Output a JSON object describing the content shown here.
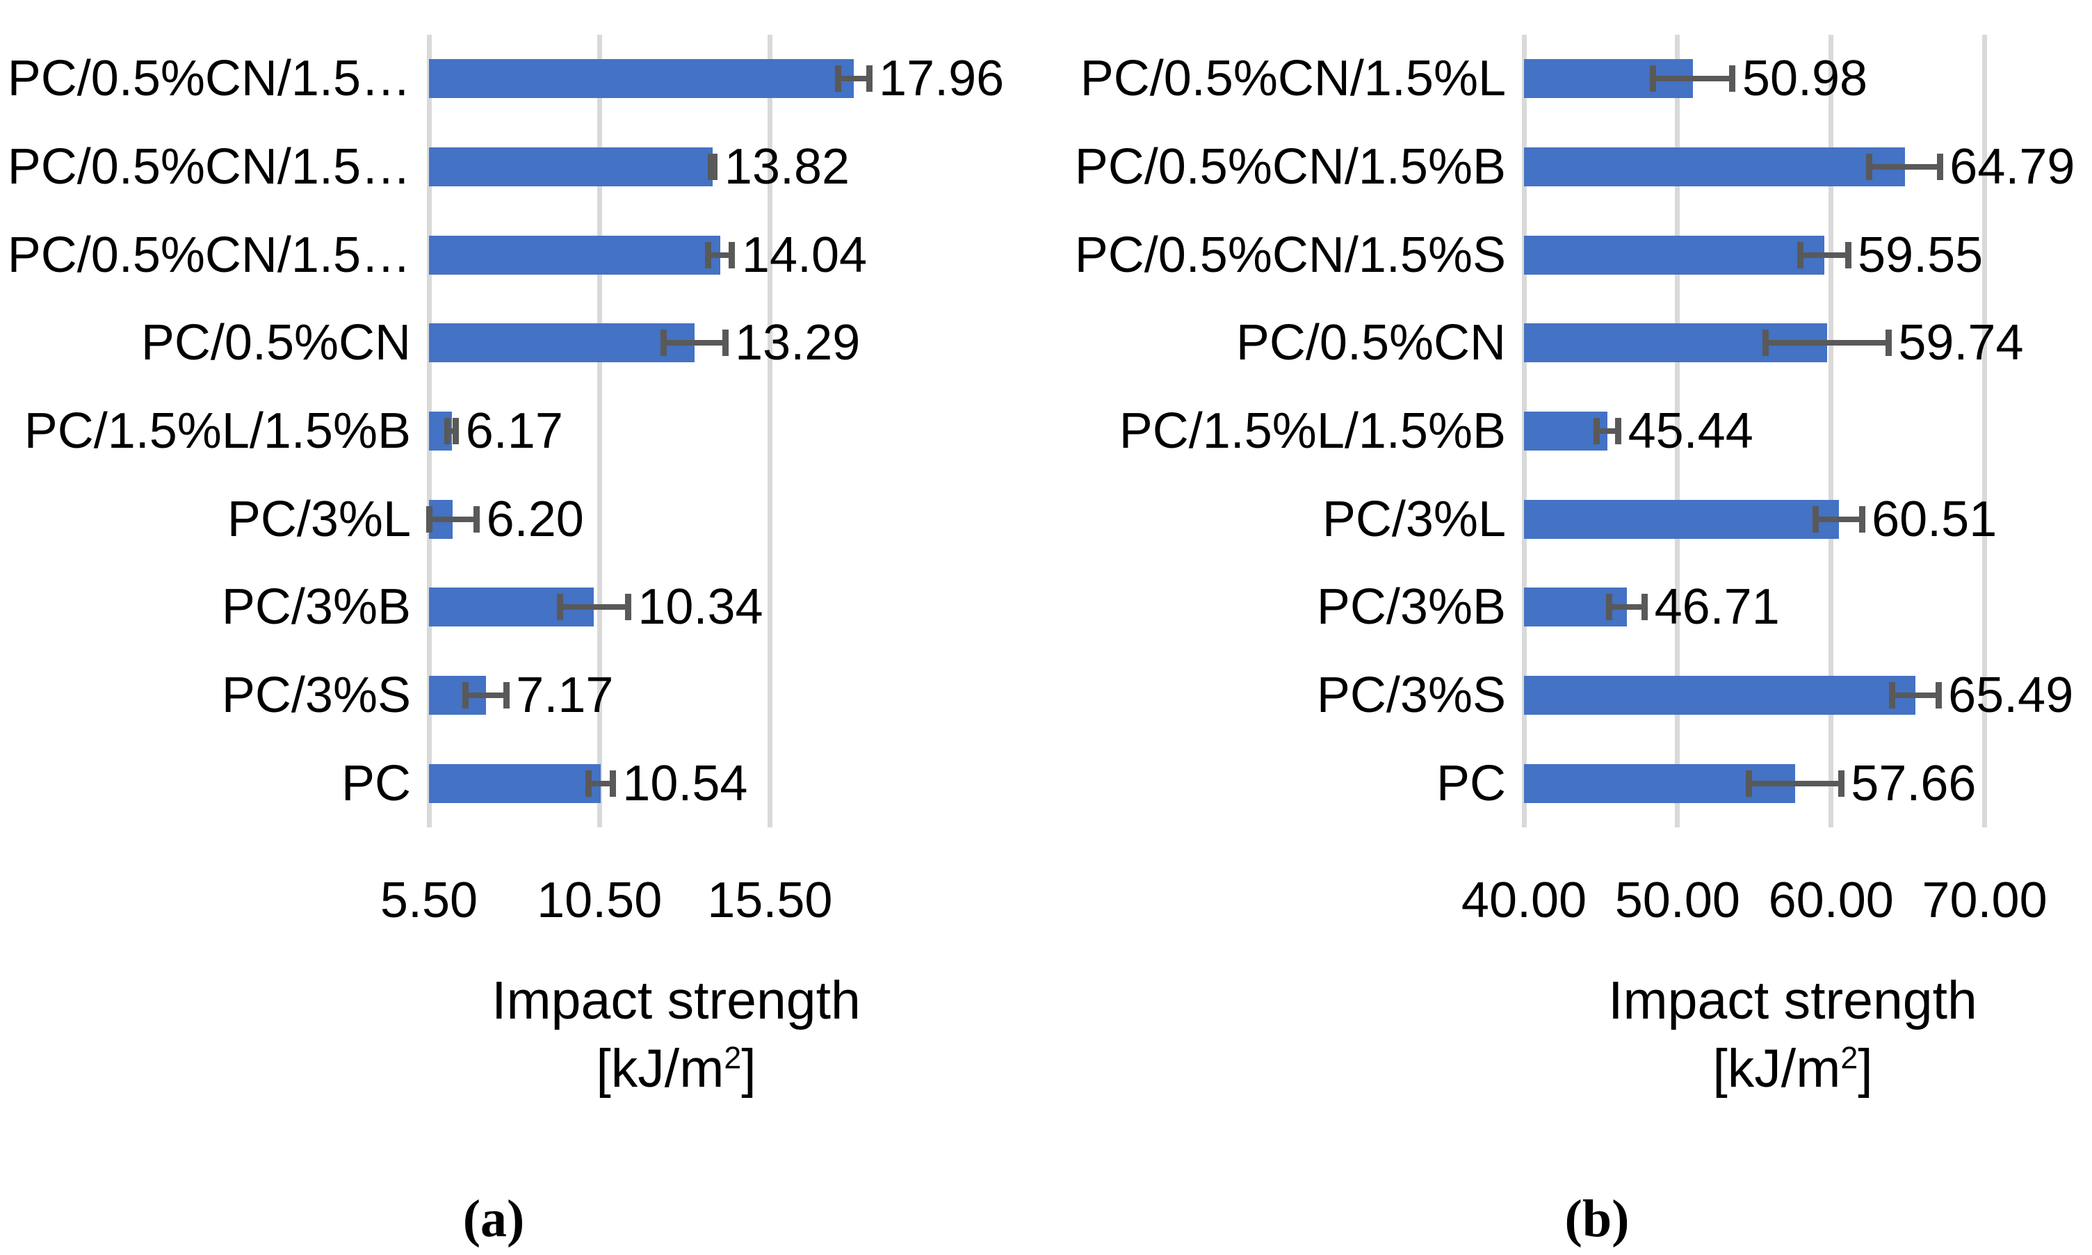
{
  "chart_data": [
    {
      "type": "bar",
      "panel": "a",
      "caption": "(a)",
      "orientation": "horizontal",
      "title": "",
      "xlabel_line1": "Impact strength",
      "xlabel_unit_prefix": "[kJ/m",
      "xlabel_unit_sup": "2",
      "xlabel_unit_suffix": "]",
      "categories": [
        "PC/0.5%CN/1.5…",
        "PC/0.5%CN/1.5…",
        "PC/0.5%CN/1.5…",
        "PC/0.5%CN",
        "PC/1.5%L/1.5%B",
        "PC/3%L",
        "PC/3%B",
        "PC/3%S",
        "PC"
      ],
      "values": [
        17.96,
        13.82,
        14.04,
        13.29,
        6.17,
        6.2,
        10.34,
        7.17,
        10.54
      ],
      "value_labels": [
        "17.96",
        "13.82",
        "14.04",
        "13.29",
        "6.17",
        "6.20",
        "10.34",
        "7.17",
        "10.54"
      ],
      "errors": [
        0.45,
        0.06,
        0.35,
        0.9,
        0.12,
        0.7,
        1.0,
        0.6,
        0.35
      ],
      "axis": {
        "min": 5.5,
        "max": 20.0,
        "ticks": [
          5.5,
          10.5,
          15.5
        ],
        "tick_labels": [
          "5.50",
          "10.50",
          "15.50"
        ]
      },
      "grid": true,
      "legend": "none",
      "bar_color": "#4472C4",
      "error_color": "#595959",
      "grid_color": "#D9D9D9",
      "text_color": "#000000"
    },
    {
      "type": "bar",
      "panel": "b",
      "caption": "(b)",
      "orientation": "horizontal",
      "title": "",
      "xlabel_line1": "Impact strength",
      "xlabel_unit_prefix": "[kJ/m",
      "xlabel_unit_sup": "2",
      "xlabel_unit_suffix": "]",
      "categories": [
        "PC/0.5%CN/1.5%L",
        "PC/0.5%CN/1.5%B",
        "PC/0.5%CN/1.5%S",
        "PC/0.5%CN",
        "PC/1.5%L/1.5%B",
        "PC/3%L",
        "PC/3%B",
        "PC/3%S",
        "PC"
      ],
      "values": [
        50.98,
        64.79,
        59.55,
        59.74,
        45.44,
        60.51,
        46.71,
        65.49,
        57.66
      ],
      "value_labels": [
        "50.98",
        "64.79",
        "59.55",
        "59.74",
        "45.44",
        "60.51",
        "46.71",
        "65.49",
        "57.66"
      ],
      "errors": [
        2.6,
        2.3,
        1.55,
        4.0,
        0.7,
        1.5,
        1.15,
        1.5,
        3.0
      ],
      "axis": {
        "min": 40.0,
        "max": 75.0,
        "ticks": [
          40,
          50,
          60,
          70
        ],
        "tick_labels": [
          "40.00",
          "50.00",
          "60.00",
          "70.00"
        ]
      },
      "grid": true,
      "legend": "none",
      "bar_color": "#4472C4",
      "error_color": "#595959",
      "grid_color": "#D9D9D9",
      "text_color": "#000000"
    }
  ]
}
